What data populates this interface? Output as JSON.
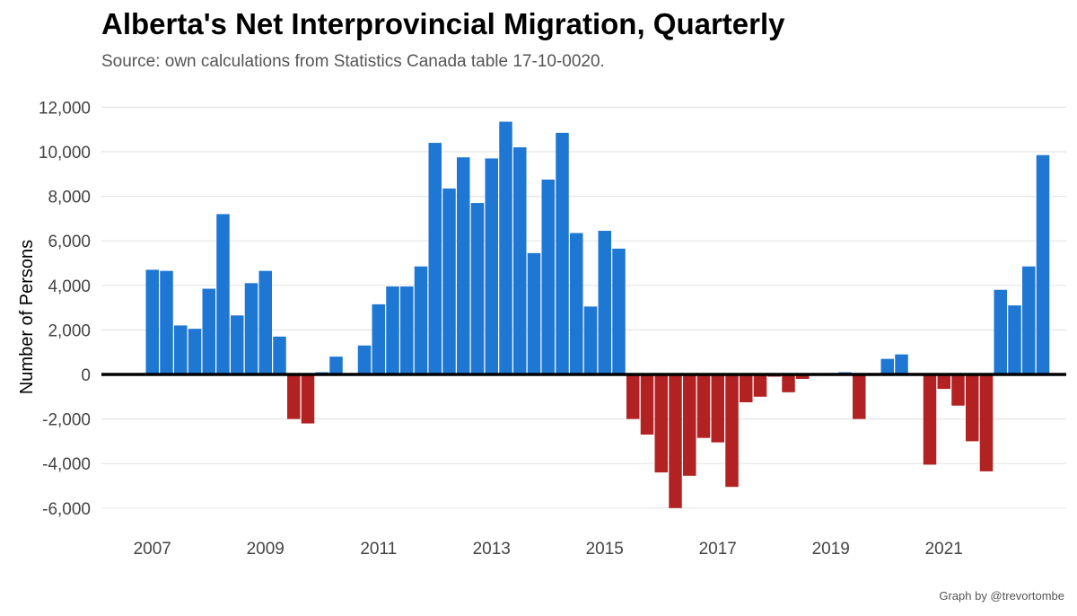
{
  "title": "Alberta's Net Interprovincial Migration, Quarterly",
  "subtitle": "Source: own calculations from Statistics Canada table 17-10-0020.",
  "caption": "Graph by @trevortombe",
  "chart_data": {
    "type": "bar",
    "ylabel": "Number of Persons",
    "xlabel": "",
    "ylim": [
      -6600,
      12500
    ],
    "yticks": [
      -6000,
      -4000,
      -2000,
      0,
      2000,
      4000,
      6000,
      8000,
      10000,
      12000
    ],
    "ytick_labels": [
      "-6,000",
      "-4,000",
      "-2,000",
      "0",
      "2,000",
      "4,000",
      "6,000",
      "8,000",
      "10,000",
      "12,000"
    ],
    "xticks": [
      2007,
      2009,
      2011,
      2013,
      2015,
      2017,
      2019,
      2021
    ],
    "xtick_labels": [
      "2007",
      "2009",
      "2011",
      "2013",
      "2015",
      "2017",
      "2019",
      "2021"
    ],
    "grid": true,
    "colors": {
      "positive": "#1f77d4",
      "negative": "#b22222",
      "zero_line": "#000000",
      "grid": "#e6e6e6"
    },
    "quarters": [
      "2007 Q1",
      "2007 Q2",
      "2007 Q3",
      "2007 Q4",
      "2008 Q1",
      "2008 Q2",
      "2008 Q3",
      "2008 Q4",
      "2009 Q1",
      "2009 Q2",
      "2009 Q3",
      "2009 Q4",
      "2010 Q1",
      "2010 Q2",
      "2010 Q3",
      "2010 Q4",
      "2011 Q1",
      "2011 Q2",
      "2011 Q3",
      "2011 Q4",
      "2012 Q1",
      "2012 Q2",
      "2012 Q3",
      "2012 Q4",
      "2013 Q1",
      "2013 Q2",
      "2013 Q3",
      "2013 Q4",
      "2014 Q1",
      "2014 Q2",
      "2014 Q3",
      "2014 Q4",
      "2015 Q1",
      "2015 Q2",
      "2015 Q3",
      "2015 Q4",
      "2016 Q1",
      "2016 Q2",
      "2016 Q3",
      "2016 Q4",
      "2017 Q1",
      "2017 Q2",
      "2017 Q3",
      "2017 Q4",
      "2018 Q1",
      "2018 Q2",
      "2018 Q3",
      "2018 Q4",
      "2019 Q1",
      "2019 Q2",
      "2019 Q3",
      "2019 Q4",
      "2020 Q1",
      "2020 Q2",
      "2020 Q3",
      "2020 Q4",
      "2021 Q1",
      "2021 Q2",
      "2021 Q3",
      "2021 Q4",
      "2022 Q1",
      "2022 Q2",
      "2022 Q3",
      "2022 Q4",
      "2023 Q1",
      "2023 Q2"
    ],
    "values": [
      4700,
      4650,
      2200,
      2050,
      3850,
      7200,
      2650,
      4100,
      4650,
      1700,
      -2000,
      -2200,
      100,
      800,
      0,
      1300,
      3150,
      3950,
      3950,
      4850,
      10400,
      8350,
      9750,
      7700,
      9700,
      11350,
      10200,
      5450,
      8750,
      10850,
      6350,
      3050,
      6450,
      5650,
      -2000,
      -2700,
      -4400,
      -6000,
      -4550,
      -2850,
      -3050,
      -5050,
      -1250,
      -1000,
      -100,
      -800,
      -200,
      0,
      0,
      100,
      -2000,
      0,
      700,
      900,
      0,
      -4050,
      -650,
      -1400,
      -3000,
      -4350,
      3800,
      3100,
      4850,
      9850,
      0,
      0
    ]
  }
}
